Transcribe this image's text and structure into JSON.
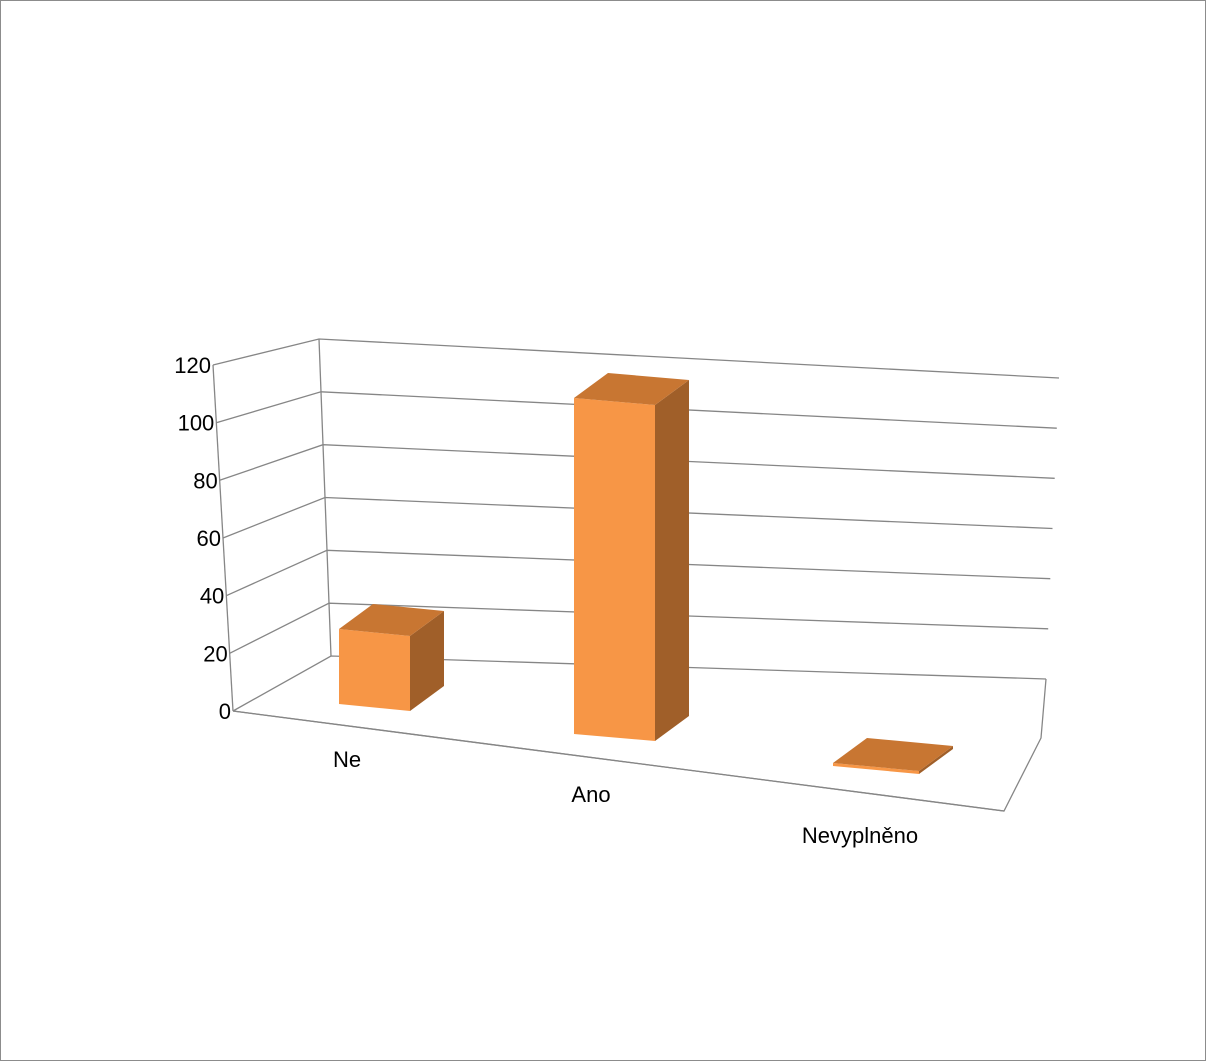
{
  "chart_data": {
    "type": "bar",
    "style": "3d-column",
    "title": "",
    "xlabel": "",
    "ylabel": "",
    "categories": [
      "Ne",
      "Ano",
      "Nevyplněno"
    ],
    "values": [
      25,
      112,
      1
    ],
    "ylim": [
      0,
      120
    ],
    "yticks": [
      "0",
      "20",
      "40",
      "60",
      "80",
      "100",
      "120"
    ],
    "grid": true,
    "legend": "none",
    "colors": {
      "bar_front": "#f79646",
      "bar_top": "#c87632",
      "bar_side": "#a05f29",
      "gridline": "#868686"
    }
  }
}
